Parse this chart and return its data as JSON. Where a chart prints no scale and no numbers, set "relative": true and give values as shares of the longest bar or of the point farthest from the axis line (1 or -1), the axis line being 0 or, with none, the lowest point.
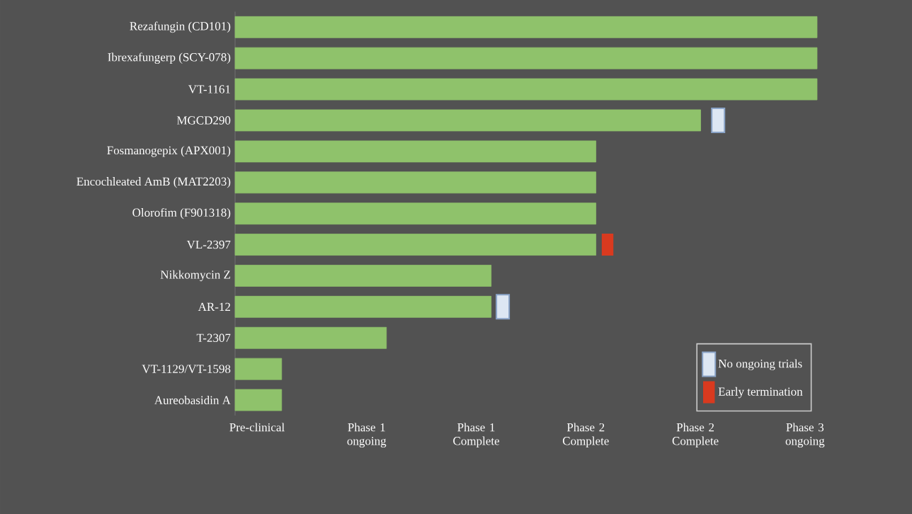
{
  "chart_data": {
    "type": "bar",
    "orientation": "horizontal",
    "relative": true,
    "legend": "bottom right",
    "categories": [
      "Rezafungin (CD101)",
      "Ibrexafungerp (SCY-078)",
      "VT-1161",
      "MGCD290",
      "Fosmanogepix (APX001)",
      "Encochleated AmB (MAT2203)",
      "Olorofim (F901318)",
      "VL-2397",
      "Nikkomycin Z",
      "AR-12",
      "T-2307",
      "VT-1129/VT-1598",
      "Aureobasidin A"
    ],
    "series": [
      {
        "color": "#8fc26b",
        "values": [
          1,
          1,
          1,
          0.8,
          0.62,
          0.62,
          0.62,
          0.62,
          0.44,
          0.44,
          0.26,
          0.08,
          0.08
        ]
      },
      {
        "name": "No ongoing trials",
        "type": "scatter",
        "marker": "square",
        "color": "#dde7f3",
        "values": [
          null,
          null,
          null,
          0.83,
          null,
          null,
          null,
          null,
          null,
          0.46,
          null,
          null,
          null
        ]
      },
      {
        "name": "Early termination",
        "type": "scatter",
        "marker": "square",
        "color": "#d93a1f",
        "values": [
          null,
          null,
          null,
          null,
          null,
          null,
          null,
          0.64,
          null,
          null,
          null,
          null,
          null
        ]
      }
    ],
    "annotations": [
      "Pre-clinical",
      "Phase 1 ongoing",
      "Phase 1 Complete",
      "Phase 2 Complete",
      "Phase 2 Complete",
      "Phase 3 ongoing"
    ]
  }
}
